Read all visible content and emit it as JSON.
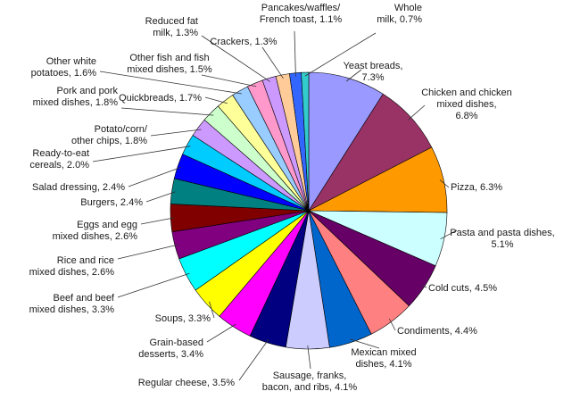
{
  "chart_data": {
    "type": "pie",
    "title": "",
    "start_angle_deg": 90,
    "direction": "clockwise",
    "legend": "none",
    "slices": [
      {
        "label": [
          "Yeast breads,",
          "7.3%"
        ],
        "value": 7.3,
        "color": "#9999FF"
      },
      {
        "label": [
          "Chicken and chicken",
          "mixed dishes,",
          "6.8%"
        ],
        "value": 6.8,
        "color": "#993366"
      },
      {
        "label": [
          "Pizza, 6.3%"
        ],
        "value": 6.3,
        "color": "#FF9900"
      },
      {
        "label": [
          "Pasta and pasta dishes,",
          "5.1%"
        ],
        "value": 5.1,
        "color": "#CCFFFF"
      },
      {
        "label": [
          "Cold cuts, 4.5%"
        ],
        "value": 4.5,
        "color": "#660066"
      },
      {
        "label": [
          "Condiments, 4.4%"
        ],
        "value": 4.4,
        "color": "#FF8080"
      },
      {
        "label": [
          "Mexican mixed",
          "dishes, 4.1%"
        ],
        "value": 4.1,
        "color": "#0066CC"
      },
      {
        "label": [
          "Sausage, franks,",
          "bacon, and ribs, 4.1%"
        ],
        "value": 4.1,
        "color": "#CCCCFF"
      },
      {
        "label": [
          "Regular cheese, 3.5%"
        ],
        "value": 3.5,
        "color": "#000080"
      },
      {
        "label": [
          "Grain-based",
          "desserts, 3.4%"
        ],
        "value": 3.4,
        "color": "#FF00FF"
      },
      {
        "label": [
          "Soups, 3.3%"
        ],
        "value": 3.3,
        "color": "#FFFF00"
      },
      {
        "label": [
          "Beef and beef",
          "mixed dishes, 3.3%"
        ],
        "value": 3.3,
        "color": "#00FFFF"
      },
      {
        "label": [
          "Rice and rice",
          "mixed dishes, 2.6%"
        ],
        "value": 2.6,
        "color": "#800080"
      },
      {
        "label": [
          "Eggs and egg",
          "mixed dishes, 2.6%"
        ],
        "value": 2.6,
        "color": "#800000"
      },
      {
        "label": [
          "Burgers, 2.4%"
        ],
        "value": 2.4,
        "color": "#008080"
      },
      {
        "label": [
          "Salad dressing, 2.4%"
        ],
        "value": 2.4,
        "color": "#0000FF"
      },
      {
        "label": [
          "Ready-to-eat",
          "cereals, 2.0%"
        ],
        "value": 2.0,
        "color": "#00CCFF"
      },
      {
        "label": [
          "Potato/corn/",
          "other chips, 1.8%"
        ],
        "value": 1.8,
        "color": "#CC99FF"
      },
      {
        "label": [
          "Pork and pork",
          "mixed dishes, 1.8%"
        ],
        "value": 1.8,
        "color": "#CCFFCC"
      },
      {
        "label": [
          "Quickbreads, 1.7%"
        ],
        "value": 1.7,
        "color": "#FFFF99"
      },
      {
        "label": [
          "Other white",
          "potatoes, 1.6%"
        ],
        "value": 1.6,
        "color": "#99CCFF"
      },
      {
        "label": [
          "Other fish and fish",
          "mixed dishes, 1.5%"
        ],
        "value": 1.5,
        "color": "#FF99CC"
      },
      {
        "label": [
          "Reduced fat",
          "milk, 1.3%"
        ],
        "value": 1.3,
        "color": "#CC99FF"
      },
      {
        "label": [
          "Crackers, 1.3%"
        ],
        "value": 1.3,
        "color": "#FFCC99"
      },
      {
        "label": [
          "Pancakes/waffles/",
          "French toast, 1.1%"
        ],
        "value": 1.1,
        "color": "#3366FF"
      },
      {
        "label": [
          "Whole",
          "milk, 0.7%"
        ],
        "value": 0.7,
        "color": "#33CCCC"
      }
    ]
  }
}
